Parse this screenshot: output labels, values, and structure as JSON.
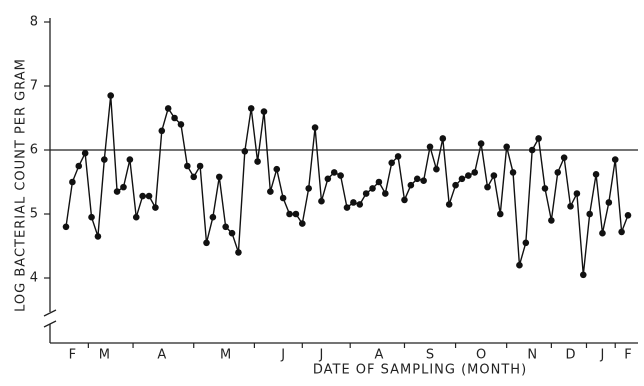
{
  "chart_data": {
    "type": "line",
    "x_label": "DATE OF SAMPLING (MONTH)",
    "y_label": "LOG  BACTERIAL  COUNT  PER  GRAM",
    "categories": [
      null,
      "F",
      null,
      null,
      null,
      null,
      "M",
      null,
      null,
      null,
      null,
      null,
      null,
      null,
      null,
      "A",
      null,
      null,
      null,
      null,
      null,
      null,
      null,
      null,
      null,
      "M",
      null,
      null,
      null,
      null,
      null,
      null,
      null,
      null,
      "J",
      null,
      null,
      null,
      null,
      null,
      "J",
      null,
      null,
      null,
      null,
      null,
      null,
      null,
      null,
      "A",
      null,
      null,
      null,
      null,
      null,
      null,
      null,
      "S",
      null,
      null,
      null,
      null,
      null,
      null,
      null,
      "O",
      null,
      null,
      null,
      null,
      null,
      null,
      null,
      "N",
      null,
      null,
      null,
      null,
      null,
      "D",
      null,
      null,
      null,
      null,
      "J",
      null,
      null,
      null,
      "F"
    ],
    "series": [
      {
        "color": "#111111",
        "values": [
          4.8,
          5.5,
          5.75,
          5.95,
          4.95,
          4.65,
          5.85,
          6.85,
          5.35,
          5.42,
          5.85,
          4.95,
          5.28,
          5.28,
          5.1,
          6.3,
          6.65,
          6.5,
          6.4,
          5.75,
          5.58,
          5.75,
          4.55,
          4.95,
          5.58,
          4.8,
          4.7,
          4.4,
          5.98,
          6.65,
          5.82,
          6.6,
          5.35,
          5.7,
          5.25,
          5.0,
          5.0,
          4.85,
          5.4,
          6.35,
          5.2,
          5.55,
          5.65,
          5.6,
          5.1,
          5.18,
          5.15,
          5.32,
          5.4,
          5.5,
          5.32,
          5.8,
          5.9,
          5.22,
          5.45,
          5.55,
          5.52,
          6.05,
          5.7,
          6.18,
          5.15,
          5.45,
          5.55,
          5.6,
          5.65,
          6.1,
          5.42,
          5.6,
          5.0,
          6.05,
          5.65,
          4.2,
          4.55,
          6.0,
          6.18,
          5.4,
          4.9,
          5.65,
          5.88,
          5.12,
          5.32,
          4.05,
          5.0,
          5.62,
          4.7,
          5.18,
          5.85,
          4.72,
          4.98
        ]
      }
    ],
    "ylim": [
      4,
      8
    ],
    "yticks": [
      4,
      5,
      6,
      7,
      8
    ],
    "reference_line": 6
  }
}
